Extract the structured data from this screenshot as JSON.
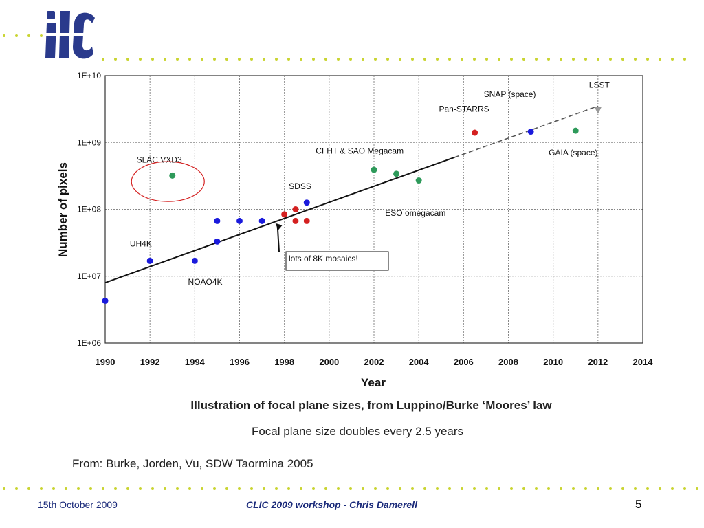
{
  "logo": {
    "text": "ilc",
    "color": "#2a3a8c"
  },
  "dot_color": "#c9d431",
  "chart_data": {
    "type": "scatter",
    "xlabel": "Year",
    "ylabel": "Number of pixels",
    "xlim": [
      1990,
      2014
    ],
    "ylim": [
      1000000,
      10000000000
    ],
    "y_scale": "log",
    "x_ticks": [
      "1990",
      "1992",
      "1994",
      "1996",
      "1998",
      "2000",
      "2002",
      "2004",
      "2006",
      "2008",
      "2010",
      "2012",
      "2014"
    ],
    "y_ticks": [
      "1E+06",
      "1E+07",
      "1E+08",
      "1E+09",
      "1E+10"
    ],
    "grid": true,
    "points": [
      {
        "x": 1990,
        "y": 4300000,
        "color": "#1a1adc",
        "shape": "circle"
      },
      {
        "x": 1992,
        "y": 17000000,
        "color": "#1a1adc",
        "shape": "circle"
      },
      {
        "x": 1993,
        "y": 320000000,
        "color": "#2e9a5a",
        "shape": "circle"
      },
      {
        "x": 1994,
        "y": 17000000,
        "color": "#1a1adc",
        "shape": "circle"
      },
      {
        "x": 1995,
        "y": 67000000,
        "color": "#1a1adc",
        "shape": "circle"
      },
      {
        "x": 1995,
        "y": 33000000,
        "color": "#1a1adc",
        "shape": "circle"
      },
      {
        "x": 1996,
        "y": 67000000,
        "color": "#1a1adc",
        "shape": "circle"
      },
      {
        "x": 1997,
        "y": 67000000,
        "color": "#1a1adc",
        "shape": "circle"
      },
      {
        "x": 1998,
        "y": 84000000,
        "color": "#d42020",
        "shape": "circle"
      },
      {
        "x": 1998.5,
        "y": 67000000,
        "color": "#d42020",
        "shape": "circle"
      },
      {
        "x": 1998.5,
        "y": 100000000,
        "color": "#d42020",
        "shape": "circle"
      },
      {
        "x": 1999,
        "y": 67000000,
        "color": "#d42020",
        "shape": "circle"
      },
      {
        "x": 1999,
        "y": 126000000,
        "color": "#1a1adc",
        "shape": "circle"
      },
      {
        "x": 2002,
        "y": 390000000,
        "color": "#2e9a5a",
        "shape": "circle"
      },
      {
        "x": 2003,
        "y": 340000000,
        "color": "#2e9a5a",
        "shape": "circle"
      },
      {
        "x": 2004,
        "y": 270000000,
        "color": "#2e9a5a",
        "shape": "circle"
      },
      {
        "x": 2006.5,
        "y": 1400000000,
        "color": "#d42020",
        "shape": "circle"
      },
      {
        "x": 2009,
        "y": 1450000000,
        "color": "#1a1adc",
        "shape": "circle"
      },
      {
        "x": 2011,
        "y": 1500000000,
        "color": "#2e9a5a",
        "shape": "circle"
      },
      {
        "x": 2012,
        "y": 3000000000,
        "color": "#999999",
        "shape": "triangle"
      }
    ],
    "trend_line": {
      "solid": [
        [
          1990,
          8000000
        ],
        [
          2005.6,
          600000000
        ]
      ],
      "dashed": [
        [
          2005.6,
          600000000
        ],
        [
          2012,
          3500000000
        ]
      ]
    },
    "labels": [
      {
        "text": "SLAC VXD3",
        "x": 1991.4,
        "y": 500000000
      },
      {
        "text": "UH4K",
        "x": 1991.1,
        "y": 28000000
      },
      {
        "text": "NOAO4K",
        "x": 1993.7,
        "y": 7500000
      },
      {
        "text": "SDSS",
        "x": 1998.2,
        "y": 200000000
      },
      {
        "text": "CFHT & SAO Megacam",
        "x": 1999.4,
        "y": 680000000
      },
      {
        "text": "ESO omegacam",
        "x": 2002.5,
        "y": 80000000
      },
      {
        "text": "Pan-STARRS",
        "x": 2004.9,
        "y": 2900000000
      },
      {
        "text": "SNAP (space)",
        "x": 2006.9,
        "y": 4800000000
      },
      {
        "text": "LSST",
        "x": 2011.6,
        "y": 6600000000
      },
      {
        "text": "GAIA (space)",
        "x": 2009.8,
        "y": 640000000
      }
    ],
    "annotation": {
      "text": "lots of 8K mosaics!",
      "arrow_to": [
        1997.6,
        62000000
      ]
    },
    "highlight_circle": {
      "x": 1992.8,
      "y": 260000000
    }
  },
  "caption": {
    "title": "Illustration of focal plane sizes, from Luppino/Burke ‘Moores’ law",
    "subtitle": "Focal plane size doubles every 2.5 years"
  },
  "source_note": "From: Burke, Jorden, Vu,  SDW Taormina 2005",
  "footer": {
    "date": "15th October 2009",
    "center": "CLIC 2009 workshop - Chris Damerell",
    "page": "5"
  }
}
